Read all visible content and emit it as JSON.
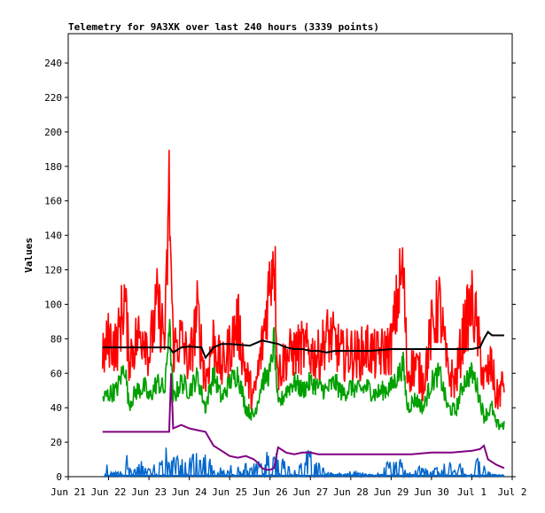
{
  "chart_data": {
    "type": "line",
    "title": "Telemetry for 9A3XK over last 240 hours (3339 points)",
    "xlabel": "",
    "ylabel": "Values",
    "ylim": [
      0,
      257
    ],
    "xlim": [
      0,
      11
    ],
    "grid": false,
    "x_ticks": [
      "Jun 21",
      "Jun 22",
      "Jun 23",
      "Jun 24",
      "Jun 25",
      "Jun 26",
      "Jun 27",
      "Jun 28",
      "Jun 29",
      "Jun 30",
      "Jul 1",
      "Jul 2"
    ],
    "y_ticks": [
      0,
      20,
      40,
      60,
      80,
      100,
      120,
      140,
      160,
      180,
      200,
      220,
      240
    ],
    "series": [
      {
        "color": "#ff0000",
        "style": "noisy",
        "values": [
          [
            0.85,
            68
          ],
          [
            1.0,
            80
          ],
          [
            1.2,
            75
          ],
          [
            1.4,
            105
          ],
          [
            1.5,
            70
          ],
          [
            1.7,
            80
          ],
          [
            1.9,
            85
          ],
          [
            2.0,
            70
          ],
          [
            2.2,
            100
          ],
          [
            2.4,
            80
          ],
          [
            2.5,
            165
          ],
          [
            2.6,
            75
          ],
          [
            2.8,
            80
          ],
          [
            3.0,
            65
          ],
          [
            3.2,
            95
          ],
          [
            3.4,
            55
          ],
          [
            3.6,
            80
          ],
          [
            3.8,
            62
          ],
          [
            4.0,
            75
          ],
          [
            4.2,
            90
          ],
          [
            4.4,
            60
          ],
          [
            4.6,
            45
          ],
          [
            4.8,
            75
          ],
          [
            5.0,
            115
          ],
          [
            5.1,
            135
          ],
          [
            5.2,
            60
          ],
          [
            5.4,
            70
          ],
          [
            5.6,
            72
          ],
          [
            5.8,
            75
          ],
          [
            6.0,
            72
          ],
          [
            6.2,
            70
          ],
          [
            6.4,
            82
          ],
          [
            6.6,
            78
          ],
          [
            6.8,
            70
          ],
          [
            7.0,
            72
          ],
          [
            7.2,
            70
          ],
          [
            7.4,
            75
          ],
          [
            7.6,
            70
          ],
          [
            7.8,
            72
          ],
          [
            8.0,
            75
          ],
          [
            8.2,
            110
          ],
          [
            8.3,
            120
          ],
          [
            8.4,
            60
          ],
          [
            8.6,
            65
          ],
          [
            8.8,
            55
          ],
          [
            9.0,
            85
          ],
          [
            9.2,
            100
          ],
          [
            9.4,
            60
          ],
          [
            9.6,
            55
          ],
          [
            9.8,
            85
          ],
          [
            10.0,
            100
          ],
          [
            10.1,
            90
          ],
          [
            10.3,
            55
          ],
          [
            10.5,
            65
          ],
          [
            10.6,
            45
          ],
          [
            10.8,
            55
          ]
        ]
      },
      {
        "color": "#00a000",
        "style": "noisy",
        "values": [
          [
            0.85,
            45
          ],
          [
            1.0,
            48
          ],
          [
            1.2,
            50
          ],
          [
            1.4,
            65
          ],
          [
            1.5,
            42
          ],
          [
            1.7,
            50
          ],
          [
            1.9,
            52
          ],
          [
            2.0,
            45
          ],
          [
            2.2,
            55
          ],
          [
            2.4,
            50
          ],
          [
            2.5,
            90
          ],
          [
            2.6,
            45
          ],
          [
            2.8,
            55
          ],
          [
            3.0,
            50
          ],
          [
            3.2,
            58
          ],
          [
            3.4,
            40
          ],
          [
            3.6,
            60
          ],
          [
            3.8,
            45
          ],
          [
            4.0,
            55
          ],
          [
            4.2,
            60
          ],
          [
            4.4,
            40
          ],
          [
            4.6,
            35
          ],
          [
            4.8,
            55
          ],
          [
            5.0,
            60
          ],
          [
            5.1,
            80
          ],
          [
            5.2,
            40
          ],
          [
            5.4,
            50
          ],
          [
            5.6,
            55
          ],
          [
            5.8,
            50
          ],
          [
            6.0,
            55
          ],
          [
            6.2,
            52
          ],
          [
            6.4,
            50
          ],
          [
            6.6,
            55
          ],
          [
            6.8,
            48
          ],
          [
            7.0,
            52
          ],
          [
            7.2,
            50
          ],
          [
            7.4,
            52
          ],
          [
            7.6,
            48
          ],
          [
            7.8,
            50
          ],
          [
            8.0,
            52
          ],
          [
            8.2,
            60
          ],
          [
            8.3,
            65
          ],
          [
            8.4,
            40
          ],
          [
            8.6,
            45
          ],
          [
            8.8,
            40
          ],
          [
            9.0,
            55
          ],
          [
            9.2,
            60
          ],
          [
            9.4,
            40
          ],
          [
            9.6,
            38
          ],
          [
            9.8,
            55
          ],
          [
            10.0,
            60
          ],
          [
            10.1,
            55
          ],
          [
            10.3,
            35
          ],
          [
            10.5,
            40
          ],
          [
            10.6,
            30
          ],
          [
            10.8,
            30
          ]
        ]
      },
      {
        "color": "#000000",
        "style": "smooth",
        "values": [
          [
            0.85,
            75
          ],
          [
            1.0,
            75
          ],
          [
            1.5,
            75
          ],
          [
            2.0,
            75
          ],
          [
            2.5,
            75
          ],
          [
            2.6,
            72
          ],
          [
            2.8,
            75
          ],
          [
            3.0,
            75.5
          ],
          [
            3.3,
            75
          ],
          [
            3.4,
            69
          ],
          [
            3.6,
            75
          ],
          [
            3.8,
            77
          ],
          [
            4.0,
            77
          ],
          [
            4.5,
            76
          ],
          [
            4.6,
            77
          ],
          [
            4.8,
            79
          ],
          [
            5.0,
            78
          ],
          [
            5.2,
            77
          ],
          [
            5.4,
            75
          ],
          [
            5.6,
            74
          ],
          [
            5.8,
            74
          ],
          [
            6.0,
            73
          ],
          [
            6.2,
            73
          ],
          [
            6.4,
            72
          ],
          [
            6.6,
            73
          ],
          [
            6.8,
            73
          ],
          [
            7.0,
            73
          ],
          [
            7.5,
            73
          ],
          [
            8.0,
            74
          ],
          [
            8.5,
            74
          ],
          [
            9.0,
            74
          ],
          [
            9.5,
            74
          ],
          [
            10.0,
            74
          ],
          [
            10.2,
            75
          ],
          [
            10.3,
            80
          ],
          [
            10.4,
            84
          ],
          [
            10.5,
            82
          ],
          [
            10.8,
            82
          ]
        ]
      },
      {
        "color": "#800080",
        "style": "smooth",
        "values": [
          [
            0.85,
            26
          ],
          [
            1.0,
            26
          ],
          [
            1.5,
            26
          ],
          [
            2.0,
            26
          ],
          [
            2.5,
            26
          ],
          [
            2.55,
            60
          ],
          [
            2.6,
            28
          ],
          [
            2.8,
            30
          ],
          [
            3.0,
            28
          ],
          [
            3.2,
            27
          ],
          [
            3.4,
            26
          ],
          [
            3.5,
            22
          ],
          [
            3.6,
            18
          ],
          [
            3.8,
            15
          ],
          [
            4.0,
            12
          ],
          [
            4.2,
            11
          ],
          [
            4.4,
            12
          ],
          [
            4.6,
            10
          ],
          [
            4.7,
            8
          ],
          [
            4.8,
            5
          ],
          [
            4.9,
            4
          ],
          [
            5.0,
            4
          ],
          [
            5.1,
            5
          ],
          [
            5.2,
            17
          ],
          [
            5.4,
            14
          ],
          [
            5.6,
            13
          ],
          [
            5.8,
            14
          ],
          [
            6.0,
            14
          ],
          [
            6.2,
            13
          ],
          [
            6.5,
            13
          ],
          [
            7.0,
            13
          ],
          [
            7.5,
            13
          ],
          [
            8.0,
            13
          ],
          [
            8.5,
            13
          ],
          [
            9.0,
            14
          ],
          [
            9.5,
            14
          ],
          [
            10.0,
            15
          ],
          [
            10.2,
            16
          ],
          [
            10.3,
            18
          ],
          [
            10.4,
            10
          ],
          [
            10.6,
            7
          ],
          [
            10.8,
            5
          ]
        ]
      },
      {
        "color": "#0066cc",
        "style": "spikes",
        "values": [
          [
            0.9,
            14
          ],
          [
            1.0,
            2
          ],
          [
            1.2,
            4
          ],
          [
            1.3,
            3
          ],
          [
            1.45,
            12
          ],
          [
            1.6,
            4
          ],
          [
            1.8,
            10
          ],
          [
            1.95,
            3
          ],
          [
            2.1,
            10
          ],
          [
            2.2,
            7
          ],
          [
            2.4,
            15
          ],
          [
            2.45,
            18
          ],
          [
            2.55,
            14
          ],
          [
            2.6,
            10
          ],
          [
            2.8,
            14
          ],
          [
            3.0,
            10
          ],
          [
            3.2,
            15
          ],
          [
            3.3,
            8
          ],
          [
            3.5,
            18
          ],
          [
            3.6,
            4
          ],
          [
            4.0,
            6
          ],
          [
            4.3,
            7
          ],
          [
            4.7,
            9
          ],
          [
            4.9,
            13
          ],
          [
            5.0,
            15
          ],
          [
            5.2,
            14
          ],
          [
            5.4,
            8
          ],
          [
            5.6,
            9
          ],
          [
            5.8,
            11
          ],
          [
            6.0,
            16
          ],
          [
            6.1,
            12
          ],
          [
            6.3,
            5
          ],
          [
            6.6,
            2
          ],
          [
            7.0,
            3
          ],
          [
            7.5,
            2
          ],
          [
            8.0,
            10
          ],
          [
            8.2,
            11
          ],
          [
            8.4,
            2
          ],
          [
            8.6,
            8
          ],
          [
            8.8,
            5
          ],
          [
            9.0,
            4
          ],
          [
            9.2,
            7
          ],
          [
            9.4,
            10
          ],
          [
            9.6,
            4
          ],
          [
            9.8,
            10
          ],
          [
            10.0,
            12
          ],
          [
            10.1,
            11
          ],
          [
            10.2,
            9
          ],
          [
            10.4,
            3
          ],
          [
            10.6,
            1
          ],
          [
            10.8,
            1
          ]
        ]
      }
    ]
  }
}
